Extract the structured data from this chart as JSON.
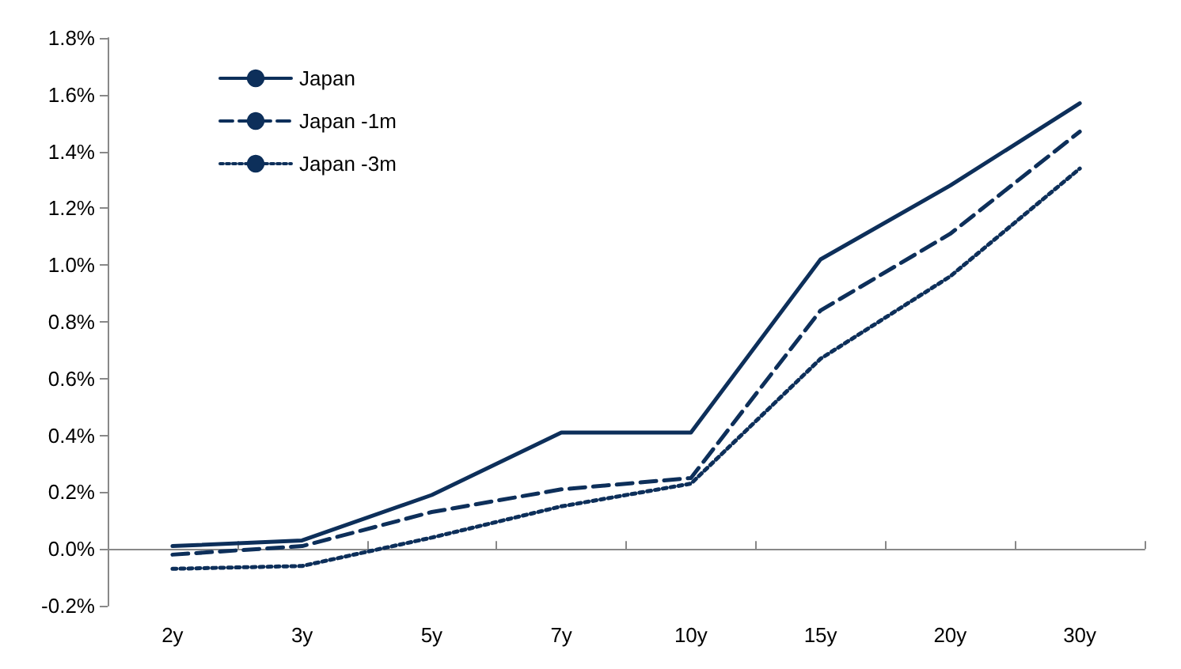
{
  "chart_data": {
    "type": "line",
    "categories": [
      "2y",
      "3y",
      "5y",
      "7y",
      "10y",
      "15y",
      "20y",
      "30y"
    ],
    "series": [
      {
        "name": "Japan",
        "color": "#0d2f5a",
        "line_style": "solid",
        "values": [
          0.01,
          0.03,
          0.19,
          0.41,
          0.41,
          1.02,
          1.28,
          1.57
        ]
      },
      {
        "name": "Japan -1m",
        "color": "#0d2f5a",
        "line_style": "dashed",
        "values": [
          -0.02,
          0.01,
          0.13,
          0.21,
          0.25,
          0.84,
          1.11,
          1.47
        ]
      },
      {
        "name": "Japan -3m",
        "color": "#0d2f5a",
        "line_style": "dotted",
        "values": [
          -0.07,
          -0.06,
          0.04,
          0.15,
          0.23,
          0.67,
          0.96,
          1.34
        ]
      }
    ],
    "ylim": [
      -0.2,
      1.8
    ],
    "yticks": [
      {
        "value": -0.2,
        "label": "-0.2%"
      },
      {
        "value": 0,
        "label": "0.0%"
      },
      {
        "value": 0.2,
        "label": "0.2%"
      },
      {
        "value": 0.4,
        "label": "0.4%"
      },
      {
        "value": 0.6,
        "label": "0.6%"
      },
      {
        "value": 0.8,
        "label": "0.8%"
      },
      {
        "value": 1.0,
        "label": "1.0%"
      },
      {
        "value": 1.2,
        "label": "1.2%"
      },
      {
        "value": 1.4,
        "label": "1.4%"
      },
      {
        "value": 1.6,
        "label": "1.6%"
      },
      {
        "value": 1.8,
        "label": "1.8%"
      }
    ],
    "legend": "top left",
    "marker": "none"
  }
}
